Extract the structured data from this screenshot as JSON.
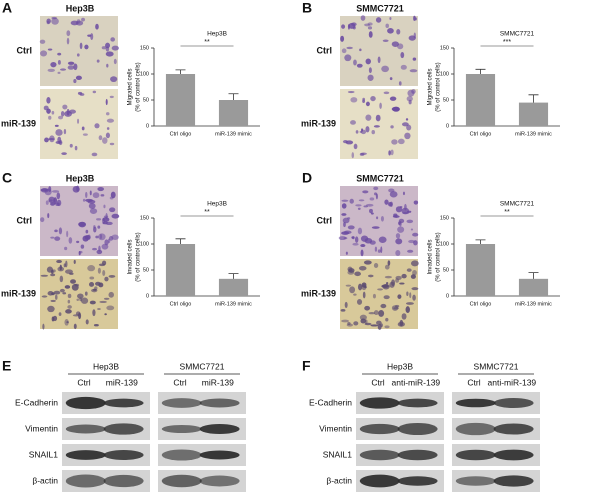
{
  "panels": [
    {
      "label": "A",
      "title": "Hep3B",
      "rows": [
        "Ctrl",
        "miR-139"
      ]
    },
    {
      "label": "B",
      "title": "SMMC7721",
      "rows": [
        "Ctrl",
        "miR-139"
      ]
    },
    {
      "label": "C",
      "title": "Hep3B",
      "rows": [
        "Ctrl",
        "miR-139"
      ]
    },
    {
      "label": "D",
      "title": "SMMC7721",
      "rows": [
        "Ctrl",
        "miR-139"
      ]
    }
  ],
  "chart_data": [
    {
      "type": "bar",
      "title": "Hep3B",
      "ylabel": [
        "Migrated cells",
        "(% of control cells)"
      ],
      "categories": [
        "Ctrl oligo",
        "miR-139 mimic"
      ],
      "values": [
        100,
        50
      ],
      "errors": [
        8,
        12
      ],
      "color": "#9a9a9a",
      "ylim": [
        0,
        150
      ],
      "yticks": [
        0,
        50,
        100,
        150
      ],
      "annotation": "**"
    },
    {
      "type": "bar",
      "title": "SMMC7721",
      "ylabel": [
        "Migrated cells",
        "(% of control cells)"
      ],
      "categories": [
        "Ctrl oligo",
        "miR-139 mimic"
      ],
      "values": [
        100,
        45
      ],
      "errors": [
        9,
        15
      ],
      "color": "#9a9a9a",
      "ylim": [
        0,
        150
      ],
      "yticks": [
        0,
        50,
        100,
        150
      ],
      "annotation": "***"
    },
    {
      "type": "bar",
      "title": "Hep3B",
      "ylabel": [
        "Invaded cells",
        "(% of control cells)"
      ],
      "categories": [
        "Ctrl oligo",
        "miR-139 mimic"
      ],
      "values": [
        100,
        33
      ],
      "errors": [
        10,
        10
      ],
      "color": "#9a9a9a",
      "ylim": [
        0,
        150
      ],
      "yticks": [
        0,
        50,
        100,
        150
      ],
      "annotation": "**"
    },
    {
      "type": "bar",
      "title": "SMMC7721",
      "ylabel": [
        "Invaded cells",
        "(% of control cells)"
      ],
      "categories": [
        "Ctrl oligo",
        "miR-139 mimic"
      ],
      "values": [
        100,
        33
      ],
      "errors": [
        8,
        12
      ],
      "color": "#9a9a9a",
      "ylim": [
        0,
        150
      ],
      "yticks": [
        0,
        50,
        100,
        150
      ],
      "annotation": "**"
    }
  ],
  "blots": [
    {
      "label": "E",
      "groups": [
        {
          "name": "Hep3B",
          "lanes": [
            "Ctrl",
            "miR-139"
          ]
        },
        {
          "name": "SMMC7721",
          "lanes": [
            "Ctrl",
            "miR-139"
          ]
        }
      ],
      "proteins": [
        "E-Cadherin",
        "Vimentin",
        "SNAIL1",
        "β-actin"
      ]
    },
    {
      "label": "F",
      "groups": [
        {
          "name": "Hep3B",
          "lanes": [
            "Ctrl",
            "anti-miR-139"
          ]
        },
        {
          "name": "SMMC7721",
          "lanes": [
            "Ctrl",
            "anti-miR-139"
          ]
        }
      ],
      "proteins": [
        "E-Cadherin",
        "Vimentin",
        "SNAIL1",
        "β-actin"
      ]
    }
  ]
}
